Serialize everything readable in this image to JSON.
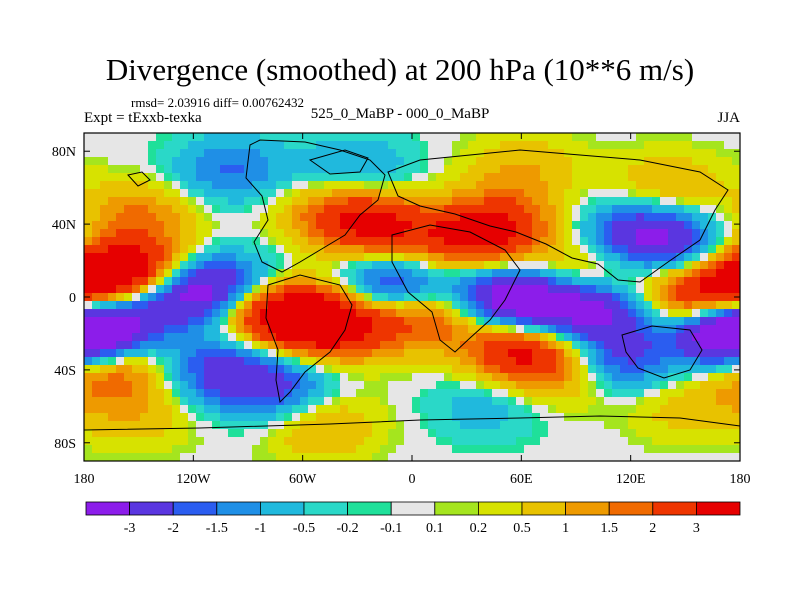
{
  "chart_data": {
    "type": "heatmap",
    "title": "Divergence (smoothed) at 200 hPa (10**6 m/s)",
    "stats_text": "rmsd= 2.03916 diff= 0.00762432",
    "experiment_label": "Expt = tExxb-texka",
    "difference_label": "525_0_MaBP - 000_0_MaBP",
    "season": "JJA",
    "x_range": [
      -180,
      180
    ],
    "y_range": [
      -90,
      90
    ],
    "x_ticks": [
      {
        "value": -180,
        "label": "180"
      },
      {
        "value": -120,
        "label": "120W"
      },
      {
        "value": -60,
        "label": "60W"
      },
      {
        "value": 0,
        "label": "0"
      },
      {
        "value": 60,
        "label": "60E"
      },
      {
        "value": 120,
        "label": "120E"
      },
      {
        "value": 180,
        "label": "180"
      }
    ],
    "y_ticks": [
      {
        "value": 80,
        "label": "80N"
      },
      {
        "value": 40,
        "label": "40N"
      },
      {
        "value": 0,
        "label": "0"
      },
      {
        "value": -40,
        "label": "40S"
      },
      {
        "value": -80,
        "label": "80S"
      }
    ],
    "color_levels": [
      {
        "label": "",
        "color": "#8c1dea"
      },
      {
        "label": "-3",
        "color": "#5a36e0"
      },
      {
        "label": "-2",
        "color": "#2b5df0"
      },
      {
        "label": "-1.5",
        "color": "#1f8fe6"
      },
      {
        "label": "-1",
        "color": "#20b9dd"
      },
      {
        "label": "-0.5",
        "color": "#2ad8c8"
      },
      {
        "label": "-0.2",
        "color": "#1fe09a"
      },
      {
        "label": "-0.1",
        "color": "#e6e6e6"
      },
      {
        "label": "0.1",
        "color": "#a5e51e"
      },
      {
        "label": "0.2",
        "color": "#d7e200"
      },
      {
        "label": "0.5",
        "color": "#e8c200"
      },
      {
        "label": "1",
        "color": "#ee9a00"
      },
      {
        "label": "1.5",
        "color": "#f06a00"
      },
      {
        "label": "2",
        "color": "#ee3500"
      },
      {
        "label": "3",
        "color": "#e60000"
      }
    ],
    "anomaly_centers": [
      {
        "lon": -170,
        "lat": 10,
        "value": 3.2
      },
      {
        "lon": -150,
        "lat": 15,
        "value": 2.8
      },
      {
        "lon": -178,
        "lat": -17,
        "value": -3.3
      },
      {
        "lon": -160,
        "lat": -5,
        "value": -2.0
      },
      {
        "lon": -120,
        "lat": 2,
        "value": -3.4
      },
      {
        "lon": -95,
        "lat": 5,
        "value": -2.2
      },
      {
        "lon": -85,
        "lat": -5,
        "value": 3.0
      },
      {
        "lon": -60,
        "lat": -12,
        "value": 3.2
      },
      {
        "lon": -35,
        "lat": -15,
        "value": 2.8
      },
      {
        "lon": -40,
        "lat": 45,
        "value": 2.0
      },
      {
        "lon": -15,
        "lat": 38,
        "value": 2.4
      },
      {
        "lon": -10,
        "lat": 5,
        "value": -3.2
      },
      {
        "lon": 10,
        "lat": -8,
        "value": 2.8
      },
      {
        "lon": 30,
        "lat": 30,
        "value": 2.4
      },
      {
        "lon": 50,
        "lat": 40,
        "value": 2.2
      },
      {
        "lon": 45,
        "lat": 0,
        "value": -3.0
      },
      {
        "lon": 75,
        "lat": -5,
        "value": -3.4
      },
      {
        "lon": 60,
        "lat": -28,
        "value": 3.4
      },
      {
        "lon": 95,
        "lat": 10,
        "value": 2.0
      },
      {
        "lon": 110,
        "lat": -5,
        "value": -3.0
      },
      {
        "lon": 125,
        "lat": 35,
        "value": -2.8
      },
      {
        "lon": 150,
        "lat": 25,
        "value": -1.6
      },
      {
        "lon": 140,
        "lat": 0,
        "value": 2.0
      },
      {
        "lon": 172,
        "lat": 0,
        "value": 3.2
      },
      {
        "lon": 110,
        "lat": -35,
        "value": -2.8
      },
      {
        "lon": 175,
        "lat": -20,
        "value": -3.3
      },
      {
        "lon": -165,
        "lat": -40,
        "value": 2.2
      },
      {
        "lon": -105,
        "lat": -40,
        "value": -2.2
      },
      {
        "lon": -75,
        "lat": -50,
        "value": -2.0
      },
      {
        "lon": 90,
        "lat": -40,
        "value": 1.8
      },
      {
        "lon": -150,
        "lat": 45,
        "value": 1.5
      },
      {
        "lon": -100,
        "lat": 70,
        "value": -1.6
      },
      {
        "lon": -30,
        "lat": 70,
        "value": -1.2
      },
      {
        "lon": 60,
        "lat": 70,
        "value": 1.0
      },
      {
        "lon": 140,
        "lat": 60,
        "value": 1.2
      },
      {
        "lon": -150,
        "lat": -65,
        "value": 0.8
      },
      {
        "lon": -50,
        "lat": -70,
        "value": 1.2
      },
      {
        "lon": 40,
        "lat": -60,
        "value": -0.8
      },
      {
        "lon": 150,
        "lat": -60,
        "value": 0.8
      }
    ]
  }
}
